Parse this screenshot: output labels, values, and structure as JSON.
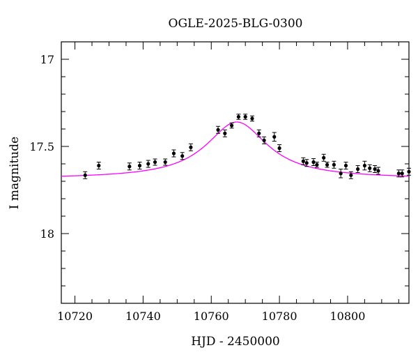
{
  "chart_data": {
    "type": "scatter",
    "title": "OGLE-2025-BLG-0300",
    "xlabel": "HJD - 2450000",
    "ylabel": "I magnitude",
    "xlim": [
      10716,
      10818
    ],
    "ylim": [
      18.4,
      16.9
    ],
    "y_inverted": true,
    "grid": false,
    "xticks": [
      10720,
      10740,
      10760,
      10780,
      10800
    ],
    "yticks": [
      17,
      17.5,
      18
    ],
    "ytick_labels": [
      "17",
      "17.5",
      "18"
    ],
    "xtick_labels": [
      "10720",
      "10740",
      "10760",
      "10780",
      "10800"
    ],
    "colors": {
      "points": "#000000",
      "model": "#ff00ff",
      "frame": "#000000"
    },
    "series": [
      {
        "kind": "points_with_errorbars",
        "points": [
          {
            "x": 10723.0,
            "y": 17.665,
            "err": 0.02
          },
          {
            "x": 10727.0,
            "y": 17.61,
            "err": 0.02
          },
          {
            "x": 10736.0,
            "y": 17.615,
            "err": 0.02
          },
          {
            "x": 10739.0,
            "y": 17.61,
            "err": 0.02
          },
          {
            "x": 10741.5,
            "y": 17.6,
            "err": 0.02
          },
          {
            "x": 10743.5,
            "y": 17.59,
            "err": 0.018
          },
          {
            "x": 10746.5,
            "y": 17.59,
            "err": 0.018
          },
          {
            "x": 10749.0,
            "y": 17.54,
            "err": 0.02
          },
          {
            "x": 10751.5,
            "y": 17.555,
            "err": 0.02
          },
          {
            "x": 10754.0,
            "y": 17.505,
            "err": 0.02
          },
          {
            "x": 10762.0,
            "y": 17.405,
            "err": 0.02
          },
          {
            "x": 10764.0,
            "y": 17.425,
            "err": 0.02
          },
          {
            "x": 10766.0,
            "y": 17.38,
            "err": 0.015
          },
          {
            "x": 10768.0,
            "y": 17.33,
            "err": 0.015
          },
          {
            "x": 10770.0,
            "y": 17.33,
            "err": 0.015
          },
          {
            "x": 10772.0,
            "y": 17.34,
            "err": 0.015
          },
          {
            "x": 10774.0,
            "y": 17.425,
            "err": 0.02
          },
          {
            "x": 10775.5,
            "y": 17.465,
            "err": 0.02
          },
          {
            "x": 10778.5,
            "y": 17.445,
            "err": 0.025
          },
          {
            "x": 10780.0,
            "y": 17.51,
            "err": 0.02
          },
          {
            "x": 10787.0,
            "y": 17.585,
            "err": 0.02
          },
          {
            "x": 10788.0,
            "y": 17.595,
            "err": 0.02
          },
          {
            "x": 10790.0,
            "y": 17.59,
            "err": 0.02
          },
          {
            "x": 10791.0,
            "y": 17.605,
            "err": 0.015
          },
          {
            "x": 10793.0,
            "y": 17.565,
            "err": 0.02
          },
          {
            "x": 10794.0,
            "y": 17.605,
            "err": 0.015
          },
          {
            "x": 10796.0,
            "y": 17.605,
            "err": 0.02
          },
          {
            "x": 10798.0,
            "y": 17.655,
            "err": 0.025
          },
          {
            "x": 10799.5,
            "y": 17.61,
            "err": 0.02
          },
          {
            "x": 10801.0,
            "y": 17.665,
            "err": 0.02
          },
          {
            "x": 10803.0,
            "y": 17.63,
            "err": 0.02
          },
          {
            "x": 10805.0,
            "y": 17.61,
            "err": 0.025
          },
          {
            "x": 10806.5,
            "y": 17.625,
            "err": 0.02
          },
          {
            "x": 10808.0,
            "y": 17.63,
            "err": 0.02
          },
          {
            "x": 10809.0,
            "y": 17.64,
            "err": 0.02
          },
          {
            "x": 10815.0,
            "y": 17.655,
            "err": 0.02
          },
          {
            "x": 10816.0,
            "y": 17.655,
            "err": 0.02
          },
          {
            "x": 10818.0,
            "y": 17.645,
            "err": 0.02
          }
        ]
      },
      {
        "kind": "model_curve",
        "model": {
          "t0": 10767.5,
          "baseline": 17.685,
          "peak_depth": 0.325,
          "half_width": 11.0
        }
      }
    ]
  }
}
